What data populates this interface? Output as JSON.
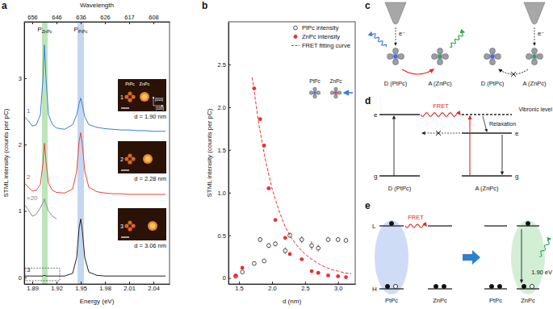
{
  "chart_data": [
    {
      "panel_label": "a",
      "type": "line",
      "x_label": "Energy (eV)",
      "y_label": "STML intensity (counts per pC)",
      "x2_label": "Wavelength",
      "xlim": [
        1.88,
        2.06
      ],
      "xticks": [
        1.89,
        1.92,
        1.95,
        1.98,
        2.01,
        2.04
      ],
      "x2ticks": [
        {
          "value": 1.89,
          "label": "656"
        },
        {
          "value": 1.92,
          "label": "646"
        },
        {
          "value": 1.95,
          "label": "636"
        },
        {
          "value": 1.98,
          "label": "626"
        },
        {
          "value": 2.01,
          "label": "617"
        },
        {
          "value": 2.04,
          "label": "608"
        }
      ],
      "ylim": [
        -0.1,
        3.85
      ],
      "yticks": [
        0,
        1,
        2,
        3
      ],
      "grid": false,
      "x": [
        1.88,
        1.885,
        1.89,
        1.895,
        1.9,
        1.903,
        1.905,
        1.907,
        1.91,
        1.915,
        1.92,
        1.93,
        1.94,
        1.945,
        1.948,
        1.95,
        1.952,
        1.955,
        1.96,
        1.97,
        1.98,
        1.99,
        2.0,
        2.01,
        2.02,
        2.03,
        2.04,
        2.05,
        2.055
      ],
      "series": [
        {
          "name": "1",
          "color": "#3b7dd8",
          "values": [
            2.42,
            2.36,
            2.28,
            2.3,
            2.45,
            2.95,
            3.5,
            3.0,
            2.45,
            2.3,
            2.25,
            2.23,
            2.3,
            2.45,
            2.62,
            2.7,
            2.6,
            2.42,
            2.3,
            2.26,
            2.24,
            2.23,
            2.22,
            2.22,
            2.21,
            2.21,
            2.2,
            2.2,
            2.2
          ]
        },
        {
          "name": "2",
          "color": "#e8453c",
          "values": [
            1.42,
            1.36,
            1.3,
            1.31,
            1.4,
            1.7,
            2.02,
            1.75,
            1.42,
            1.31,
            1.28,
            1.27,
            1.33,
            1.6,
            2.05,
            2.18,
            2.0,
            1.6,
            1.36,
            1.29,
            1.27,
            1.26,
            1.26,
            1.25,
            1.25,
            1.25,
            1.25,
            1.25,
            1.25
          ]
        },
        {
          "name": "3",
          "color": "#222222",
          "values": [
            0.02,
            0.02,
            0.02,
            0.02,
            0.02,
            0.02,
            0.03,
            0.02,
            0.02,
            0.02,
            0.02,
            0.02,
            0.06,
            0.3,
            0.75,
            0.88,
            0.7,
            0.3,
            0.08,
            0.03,
            0.02,
            0.02,
            0.02,
            0.02,
            0.02,
            0.02,
            0.02,
            0.02,
            0.02
          ]
        },
        {
          "name": "×20",
          "color": "#8c8c8c",
          "values": [
            1.1,
            1.02,
            0.92,
            0.95,
            1.05,
            1.12,
            1.18,
            1.1,
            1.0,
            0.92,
            0.88,
            null,
            null,
            null,
            null,
            null,
            null,
            null,
            null,
            null,
            null,
            null,
            null,
            null,
            null,
            null,
            null,
            null,
            null
          ]
        }
      ],
      "annotations": [
        {
          "text": "P",
          "subscript": "ZnPc",
          "x_from": 1.902,
          "x_to": 1.909,
          "color": "#8fd48a"
        },
        {
          "text": "P",
          "subscript": "PtPc",
          "x_from": 1.946,
          "x_to": 1.954,
          "color": "#9dbde8"
        }
      ],
      "zoom_box": {
        "x_from": 1.881,
        "x_to": 1.924,
        "y_from": -0.05,
        "y_to": 0.14
      },
      "insets": [
        {
          "label": "1",
          "text": "d = 1.90 nm"
        },
        {
          "label": "2",
          "text": "d = 2.28 nm"
        },
        {
          "label": "3",
          "text": "d = 3.06 nm"
        }
      ],
      "inset_header": [
        "PtPc",
        "ZnPc"
      ],
      "inset_axes": [
        "[010]",
        "[100]"
      ]
    },
    {
      "panel_label": "b",
      "type": "scatter",
      "x_label": "d (nm)",
      "y_label": "STML intensity (counts per pC)",
      "xlim": [
        1.34,
        3.26
      ],
      "xticks": [
        1.5,
        {
          "value": 2,
          "label": "2.0"
        },
        2.5,
        {
          "value": 3,
          "label": "3.0"
        }
      ],
      "ylim": [
        -0.07,
        3.0
      ],
      "yticks": [
        0,
        0.5,
        {
          "value": 1,
          "label": "1.0"
        },
        1.5,
        {
          "value": 2,
          "label": "2.0"
        },
        2.5
      ],
      "grid": false,
      "legend": "top-right",
      "series": [
        {
          "name": "PtPc intensity",
          "color": "#222222",
          "marker": "open-circle",
          "x": [
            1.45,
            1.55,
            1.73,
            1.82,
            1.88,
            1.95,
            2.05,
            2.2,
            2.27,
            2.45,
            2.6,
            2.7,
            2.85,
            3.0,
            3.12
          ],
          "values": [
            0.02,
            0.07,
            0.17,
            0.45,
            0.2,
            0.38,
            0.4,
            0.32,
            0.5,
            0.45,
            0.38,
            0.35,
            0.45,
            0.45,
            0.44
          ],
          "errors": [
            0.02,
            0.02,
            0.02,
            0.03,
            0.02,
            0.03,
            0.03,
            0.04,
            0.03,
            0.04,
            0.05,
            0.04,
            0.03,
            0.03,
            0.03
          ]
        },
        {
          "name": "ZnPc intensity",
          "color": "#e8312f",
          "marker": "circle",
          "x": [
            1.45,
            1.55,
            1.73,
            1.82,
            1.88,
            1.95,
            2.05,
            2.2,
            2.27,
            2.45,
            2.6,
            2.7,
            2.85,
            3.0,
            3.12
          ],
          "values": [
            0.03,
            0.12,
            2.22,
            1.86,
            1.55,
            1.05,
            0.68,
            0.47,
            0.28,
            0.22,
            0.08,
            0.06,
            0.03,
            0.02,
            0.01
          ],
          "x_errors": [
            0.02,
            0.02,
            0.03,
            0.02,
            0.02,
            0.03,
            0.02,
            0.03,
            0.02,
            0.03,
            0.02,
            0.03,
            0.02,
            0.03,
            0.02
          ]
        },
        {
          "name": "FRET fitting curve",
          "type": "line",
          "line_style": "dashed",
          "color": "#e8312f",
          "x": [
            1.7,
            1.8,
            1.9,
            2.0,
            2.1,
            2.2,
            2.3,
            2.4,
            2.5,
            2.6,
            2.7,
            2.8,
            2.9,
            3.0,
            3.1,
            3.2
          ],
          "values": [
            2.35,
            1.8,
            1.38,
            1.05,
            0.8,
            0.6,
            0.46,
            0.36,
            0.28,
            0.22,
            0.17,
            0.13,
            0.1,
            0.08,
            0.06,
            0.05
          ]
        }
      ],
      "inset_molecules": [
        "PtPc",
        "ZnPc"
      ]
    }
  ],
  "diagrams": [
    {
      "panel_label": "c",
      "electron": "e⁻",
      "scenes": [
        {
          "donor": "D (PtPc)",
          "acceptor": "A (ZnPc)"
        },
        {
          "donor": "D (PtPc)",
          "acceptor": "A (ZnPc)"
        }
      ]
    },
    {
      "panel_label": "d",
      "transfer": "FRET",
      "vibronic": "Vibronic level",
      "relaxation": "Relaxation",
      "donor": {
        "label": "D (PtPc)",
        "levels": [
          "e",
          "g"
        ]
      },
      "acceptor": {
        "label": "A (ZnPc)",
        "levels": [
          "e",
          "g"
        ]
      }
    },
    {
      "panel_label": "e",
      "levels": [
        "L",
        "H"
      ],
      "transfer": "FRET",
      "states": [
        {
          "donor": "PtPc",
          "acceptor": "ZnPc"
        },
        {
          "donor": "PtPc",
          "acceptor": "ZnPc"
        }
      ],
      "emission": "1.90 eV"
    }
  ]
}
